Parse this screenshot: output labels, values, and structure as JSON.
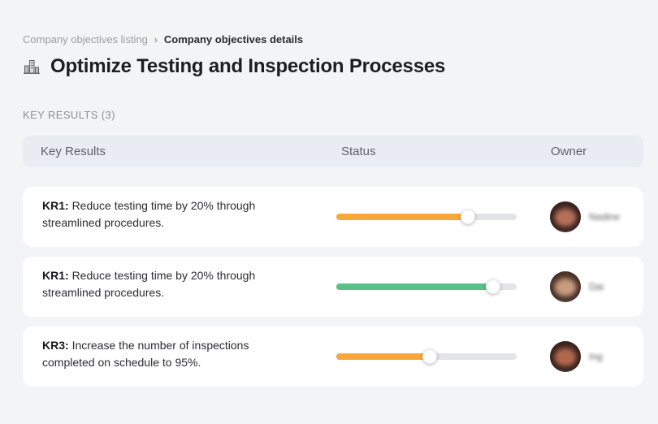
{
  "breadcrumb": {
    "parent": "Company objectives listing",
    "separator": "›",
    "current": "Company objectives details"
  },
  "page": {
    "title": "Optimize Testing and Inspection Processes",
    "section_label": "KEY RESULTS (3)"
  },
  "table": {
    "headers": {
      "key_results": "Key Results",
      "status": "Status",
      "owner": "Owner"
    },
    "rows": [
      {
        "kr_label": "KR1:",
        "kr_text": "Reduce testing time by 20% through streamlined procedures.",
        "progress_percent": 73,
        "progress_color": "#F9A63B",
        "owner_name": "Nadine",
        "avatar_colors": [
          "#b5705a",
          "#58322a",
          "#2e1c18",
          "#cfc4bd"
        ]
      },
      {
        "kr_label": "KR1:",
        "kr_text": "Reduce testing time by 20% through streamlined procedures.",
        "progress_percent": 87,
        "progress_color": "#57C189",
        "owner_name": "Dai",
        "avatar_colors": [
          "#c79b7d",
          "#6e4a38",
          "#3a2721",
          "#c9ced4"
        ]
      },
      {
        "kr_label": "KR3:",
        "kr_text": "Increase the number of inspections completed on schedule to 95%.",
        "progress_percent": 52,
        "progress_color": "#F9A63B",
        "owner_name": "Ing",
        "avatar_colors": [
          "#b2684e",
          "#5c352a",
          "#2c1b17",
          "#d8d3cf"
        ]
      }
    ]
  },
  "colors": {
    "page_background": "#f3f4f6",
    "header_background": "#e9ecf3",
    "row_background": "#ffffff",
    "track_background": "#e3e4e7",
    "progress_orange": "#F9A63B",
    "progress_green": "#57C189"
  }
}
